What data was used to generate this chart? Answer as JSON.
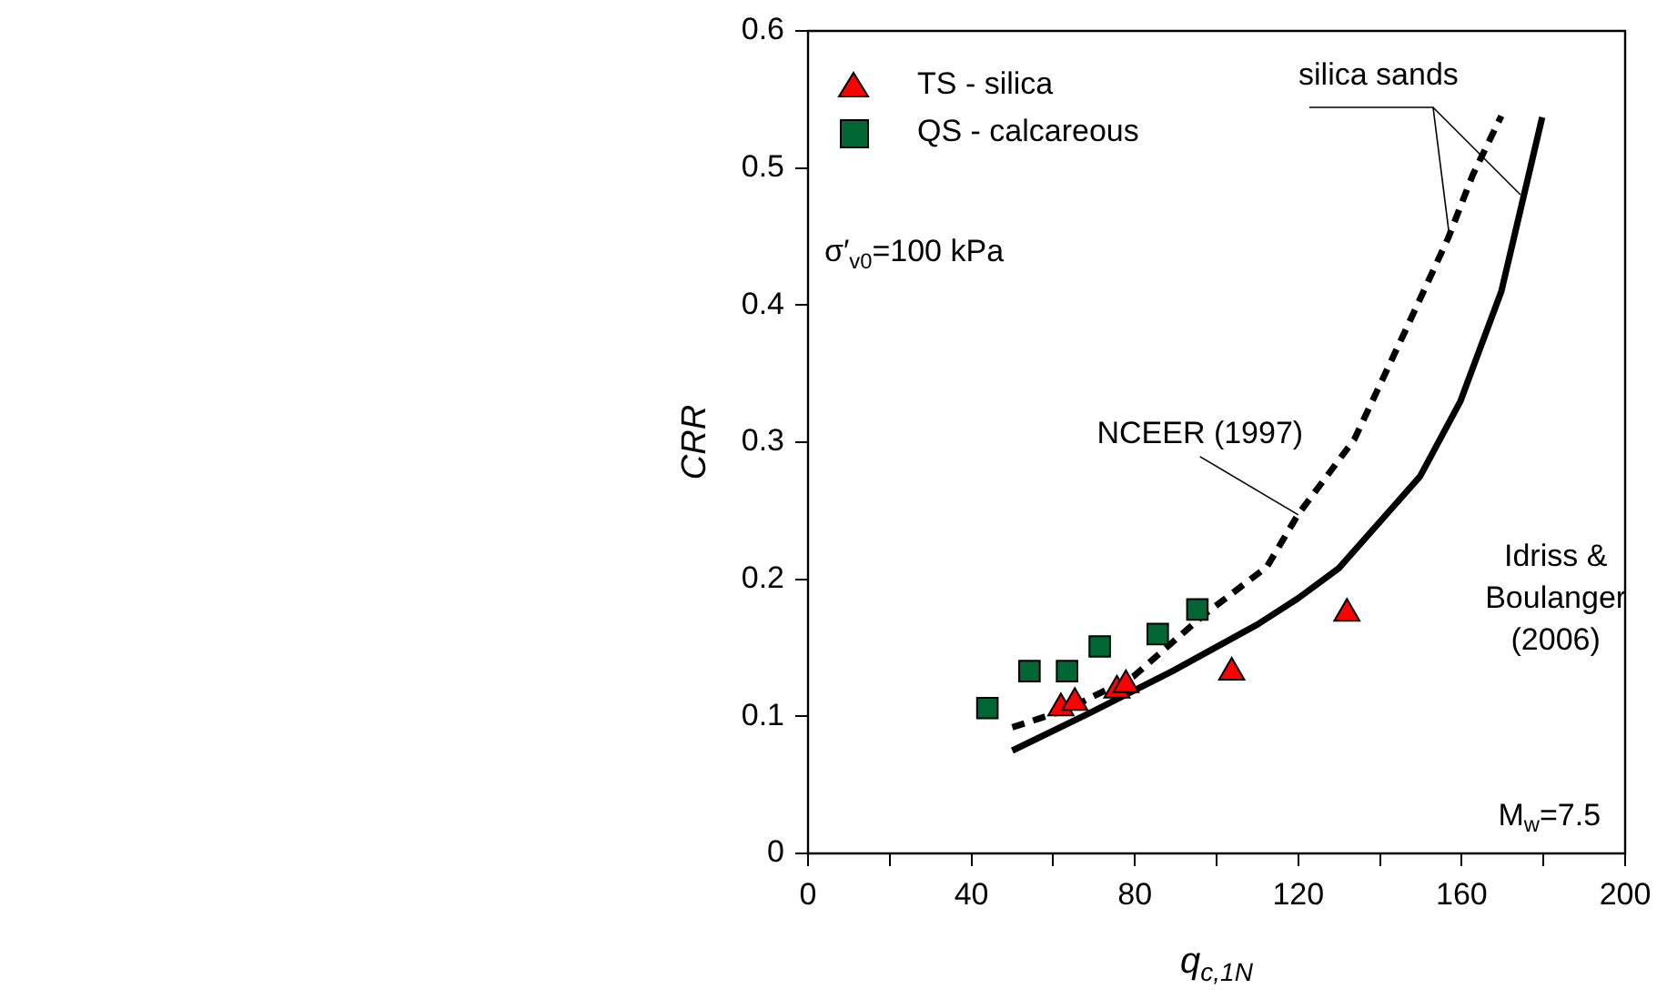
{
  "chart_data": {
    "type": "scatter",
    "xlabel": "q$_{c,1N}$",
    "ylabel": "CRR",
    "xlim": [
      0,
      200
    ],
    "ylim": [
      0,
      0.6
    ],
    "xticks": [
      0,
      {
        "value": 20,
        "label": null
      },
      40,
      {
        "value": 60,
        "label": null
      },
      80,
      {
        "value": 100,
        "label": null
      },
      120,
      {
        "value": 140,
        "label": null
      },
      160,
      {
        "value": 180,
        "label": null
      },
      200
    ],
    "yticks": [
      0,
      0.1,
      0.2,
      0.3,
      0.4,
      0.5,
      0.6
    ],
    "grid": false,
    "legend": "top left",
    "series": [
      {
        "name": "TS - silica",
        "marker": "triangle",
        "color": "#ff0000",
        "x": [
          61.9,
          65.3,
          75.6,
          77.8,
          103.7,
          131.9
        ],
        "values": [
          0.106,
          0.11,
          0.119,
          0.123,
          0.132,
          0.175
        ]
      },
      {
        "name": "QS - calcareous",
        "marker": "square",
        "color": "#006633",
        "x": [
          43.9,
          54.2,
          63.4,
          71.4,
          85.6,
          95.3
        ],
        "values": [
          0.106,
          0.133,
          0.133,
          0.151,
          0.16,
          0.178
        ]
      },
      {
        "type": "line",
        "marker": "none",
        "line_style": "dashed",
        "color": "#000000",
        "x": [
          50,
          63.4,
          79.6,
          96.9,
          112.3,
          119.9,
          133.7,
          146,
          156.7,
          162.7,
          169.7
        ],
        "values": [
          0.092,
          0.105,
          0.129,
          0.174,
          0.209,
          0.247,
          0.302,
          0.38,
          0.449,
          0.495,
          0.538
        ]
      },
      {
        "type": "line",
        "marker": "none",
        "line_style": "solid",
        "color": "#000000",
        "x": [
          50,
          69.3,
          89.2,
          110,
          119.9,
          129.9,
          149.8,
          159.7,
          169.7,
          179.7
        ],
        "values": [
          0.075,
          0.103,
          0.133,
          0.167,
          0.186,
          0.208,
          0.275,
          0.33,
          0.41,
          0.537
        ]
      }
    ],
    "annotations": [
      "σ′$_{v0}$=100 kPa",
      {
        "text": "silica sands",
        "x": 157,
        "y": 0.45
      },
      {
        "text": "NCEER (1997)",
        "x": 120,
        "y": 0.247
      },
      "Idriss &\nBoulanger\n(2006)",
      "M$_{w}$=7.5"
    ]
  }
}
